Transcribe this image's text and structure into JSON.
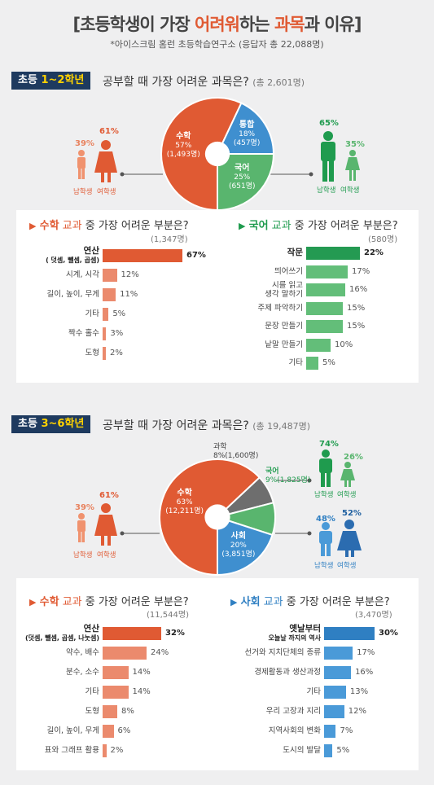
{
  "header": {
    "bracket_open": "[",
    "title_pre": "초등학생이 가장 ",
    "title_hl1": "어려워",
    "title_mid1": "하는 ",
    "title_hl2": "과목",
    "title_post": "과 이유",
    "bracket_close": "]",
    "subtitle": "*아이스크림 홈런 초등학습연구소 (응답자 총 22,088명)"
  },
  "colors": {
    "math": "#e05a33",
    "korean": "#59b56e",
    "integrated": "#3f8fcf",
    "science": "#6e6e6e",
    "social": "#3f8fcf",
    "navy": "#1e3a5f",
    "green_dark": "#1f9b4e",
    "blue_dark": "#2f7fc2"
  },
  "section1": {
    "tag_pre": "초등 ",
    "tag_grade": "1~2학년",
    "question": "공부할 때 가장 어려운 과목은?",
    "total": "(총 2,601명)",
    "girls_pct": "61%",
    "boys_pct": "39%",
    "boys_label": "남학생",
    "girls_label": "여학생",
    "kor_boys_pct": "65%",
    "kor_girls_pct": "35%",
    "math_box": {
      "title_a": "수학",
      "title_b": " 교과",
      "title_c": " 중 가장 어려운 부분은?",
      "count": "(1,347명)"
    },
    "kor_box": {
      "title_a": "국어",
      "title_b": " 교과",
      "title_c": " 중 가장 어려운 부분은?",
      "count": "(580명)"
    }
  },
  "section2": {
    "tag_pre": "초등 ",
    "tag_grade": "3~6학년",
    "question": "공부할 때 가장 어려운 과목은?",
    "total": "(총 19,487명)",
    "girls_pct": "61%",
    "boys_pct": "39%",
    "boys_label": "남학생",
    "girls_label": "여학생",
    "kor_boys_pct": "74%",
    "kor_girls_pct": "26%",
    "soc_boys_pct": "48%",
    "soc_girls_pct": "52%",
    "math_box": {
      "title_a": "수학",
      "title_b": " 교과",
      "title_c": " 중 가장 어려운 부분은?",
      "count": "(11,544명)"
    },
    "soc_box": {
      "title_a": "사회",
      "title_b": " 교과",
      "title_c": " 중 가장 어려운 부분은?",
      "count": "(3,470명)"
    }
  },
  "chart_data": [
    {
      "type": "pie",
      "title": "공부할 때 가장 어려운 과목은? (초등 1~2학년)",
      "categories": [
        "수학",
        "통합",
        "국어"
      ],
      "values": [
        57,
        18,
        25
      ],
      "labels": [
        "57%",
        "18%",
        "25%"
      ],
      "counts": [
        "(1,493명)",
        "(457명)",
        "(651명)"
      ]
    },
    {
      "type": "bar",
      "title": "수학 교과 중 가장 어려운 부분은? (1~2학년)",
      "categories": [
        "연산\n( 덧셈, 뺄셈, 곱셈)",
        "시계, 시각",
        "길이, 높이, 무게",
        "기타",
        "짝수 홀수",
        "도형"
      ],
      "values": [
        67,
        12,
        11,
        5,
        3,
        2
      ]
    },
    {
      "type": "bar",
      "title": "국어 교과 중 가장 어려운 부분은? (1~2학년)",
      "categories": [
        "작문",
        "띄어쓰기",
        "시를 읽고\n생각 말하기",
        "주제 파악하기",
        "문장 만들기",
        "낱말 만들기",
        "기타"
      ],
      "values": [
        22,
        17,
        16,
        15,
        15,
        10,
        5
      ]
    },
    {
      "type": "pie",
      "title": "공부할 때 가장 어려운 과목은? (초등 3~6학년)",
      "categories": [
        "수학",
        "과학",
        "국어",
        "사회"
      ],
      "values": [
        63,
        8,
        9,
        20
      ],
      "labels": [
        "63%",
        "8%",
        "9%",
        "20%"
      ],
      "counts": [
        "(12,211명)",
        "(1,600명)",
        "(1,825명)",
        "(3,851명)"
      ]
    },
    {
      "type": "bar",
      "title": "수학 교과 중 가장 어려운 부분은? (3~6학년)",
      "categories": [
        "연산\n(덧셈, 뺄셈, 곱셈, 나눗셈)",
        "약수, 배수",
        "분수, 소수",
        "기타",
        "도형",
        "길이, 높이, 무게",
        "표와 그래프 활용"
      ],
      "values": [
        32,
        24,
        14,
        14,
        8,
        6,
        2
      ]
    },
    {
      "type": "bar",
      "title": "사회 교과 중 가장 어려운 부분은? (3~6학년)",
      "categories": [
        "옛날부터\n오늘날 까지의 역사",
        "선거와 지치단체의 종류",
        "경제활동과 생산과정",
        "기타",
        "우리 고장과 지리",
        "지역사회의 변화",
        "도시의 발달"
      ],
      "values": [
        30,
        17,
        16,
        13,
        12,
        7,
        5
      ]
    }
  ]
}
